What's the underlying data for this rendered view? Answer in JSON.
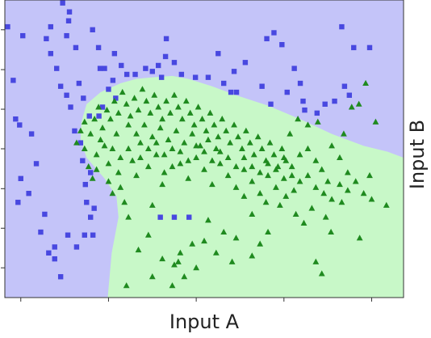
{
  "chart_data": {
    "type": "scatter",
    "title": "",
    "xlabel": "Input A",
    "ylabel": "Input B",
    "xlim": [
      0,
      1
    ],
    "ylim": [
      0,
      1
    ],
    "grid": false,
    "tick_labels": false,
    "colors": {
      "region_class_a": "#c4c4f9",
      "region_class_b": "#c8f8c8",
      "marker_class_a": "#4848e0",
      "marker_class_b": "#1f8a1f",
      "frame": "#333333"
    },
    "decision_boundary": [
      [
        0.258,
        0.0
      ],
      [
        0.268,
        0.15
      ],
      [
        0.285,
        0.27
      ],
      [
        0.28,
        0.34
      ],
      [
        0.25,
        0.4
      ],
      [
        0.205,
        0.47
      ],
      [
        0.19,
        0.53
      ],
      [
        0.192,
        0.59
      ],
      [
        0.205,
        0.65
      ],
      [
        0.24,
        0.69
      ],
      [
        0.29,
        0.72
      ],
      [
        0.33,
        0.735
      ],
      [
        0.37,
        0.74
      ],
      [
        0.42,
        0.745
      ],
      [
        0.46,
        0.735
      ],
      [
        0.52,
        0.71
      ],
      [
        0.58,
        0.68
      ],
      [
        0.66,
        0.645
      ],
      [
        0.74,
        0.6
      ],
      [
        0.82,
        0.55
      ],
      [
        0.9,
        0.51
      ],
      [
        0.96,
        0.49
      ],
      [
        1.0,
        0.47
      ]
    ],
    "series": [
      {
        "marker": "square",
        "points": [
          [
            0.007,
            0.91
          ],
          [
            0.045,
            0.88
          ],
          [
            0.021,
            0.73
          ],
          [
            0.027,
            0.6
          ],
          [
            0.037,
            0.58
          ],
          [
            0.04,
            0.4
          ],
          [
            0.033,
            0.32
          ],
          [
            0.067,
            0.55
          ],
          [
            0.079,
            0.45
          ],
          [
            0.06,
            0.35
          ],
          [
            0.1,
            0.28
          ],
          [
            0.09,
            0.22
          ],
          [
            0.11,
            0.15
          ],
          [
            0.125,
            0.13
          ],
          [
            0.14,
            0.07
          ],
          [
            0.125,
            0.17
          ],
          [
            0.158,
            0.21
          ],
          [
            0.18,
            0.17
          ],
          [
            0.2,
            0.21
          ],
          [
            0.221,
            0.21
          ],
          [
            0.215,
            0.27
          ],
          [
            0.224,
            0.3
          ],
          [
            0.205,
            0.32
          ],
          [
            0.202,
            0.38
          ],
          [
            0.215,
            0.42
          ],
          [
            0.195,
            0.46
          ],
          [
            0.19,
            0.52
          ],
          [
            0.175,
            0.56
          ],
          [
            0.165,
            0.64
          ],
          [
            0.155,
            0.68
          ],
          [
            0.14,
            0.71
          ],
          [
            0.13,
            0.77
          ],
          [
            0.115,
            0.82
          ],
          [
            0.104,
            0.87
          ],
          [
            0.115,
            0.91
          ],
          [
            0.145,
            0.99
          ],
          [
            0.16,
            0.93
          ],
          [
            0.162,
            0.96
          ],
          [
            0.155,
            0.88
          ],
          [
            0.178,
            0.84
          ],
          [
            0.186,
            0.72
          ],
          [
            0.197,
            0.67
          ],
          [
            0.212,
            0.61
          ],
          [
            0.235,
            0.84
          ],
          [
            0.22,
            0.9
          ],
          [
            0.239,
            0.77
          ],
          [
            0.25,
            0.77
          ],
          [
            0.271,
            0.73
          ],
          [
            0.275,
            0.82
          ],
          [
            0.245,
            0.64
          ],
          [
            0.236,
            0.61
          ],
          [
            0.26,
            0.7
          ],
          [
            0.278,
            0.67
          ],
          [
            0.292,
            0.78
          ],
          [
            0.306,
            0.75
          ],
          [
            0.327,
            0.75
          ],
          [
            0.353,
            0.77
          ],
          [
            0.37,
            0.76
          ],
          [
            0.393,
            0.74
          ],
          [
            0.385,
            0.78
          ],
          [
            0.403,
            0.81
          ],
          [
            0.405,
            0.87
          ],
          [
            0.425,
            0.79
          ],
          [
            0.443,
            0.75
          ],
          [
            0.478,
            0.74
          ],
          [
            0.51,
            0.74
          ],
          [
            0.535,
            0.82
          ],
          [
            0.549,
            0.72
          ],
          [
            0.567,
            0.69
          ],
          [
            0.575,
            0.76
          ],
          [
            0.581,
            0.69
          ],
          [
            0.603,
            0.79
          ],
          [
            0.645,
            0.71
          ],
          [
            0.657,
            0.87
          ],
          [
            0.667,
            0.65
          ],
          [
            0.675,
            0.89
          ],
          [
            0.695,
            0.85
          ],
          [
            0.708,
            0.69
          ],
          [
            0.726,
            0.77
          ],
          [
            0.741,
            0.72
          ],
          [
            0.748,
            0.66
          ],
          [
            0.752,
            0.63
          ],
          [
            0.783,
            0.62
          ],
          [
            0.803,
            0.65
          ],
          [
            0.827,
            0.66
          ],
          [
            0.845,
            0.91
          ],
          [
            0.852,
            0.71
          ],
          [
            0.864,
            0.68
          ],
          [
            0.915,
            0.84
          ],
          [
            0.875,
            0.84
          ],
          [
            0.39,
            0.27
          ],
          [
            0.425,
            0.27
          ],
          [
            0.462,
            0.27
          ]
        ]
      },
      {
        "marker": "triangle",
        "points": [
          [
            0.18,
            0.52
          ],
          [
            0.19,
            0.56
          ],
          [
            0.2,
            0.59
          ],
          [
            0.215,
            0.55
          ],
          [
            0.225,
            0.6
          ],
          [
            0.235,
            0.64
          ],
          [
            0.245,
            0.57
          ],
          [
            0.256,
            0.63
          ],
          [
            0.265,
            0.6
          ],
          [
            0.275,
            0.66
          ],
          [
            0.285,
            0.62
          ],
          [
            0.295,
            0.69
          ],
          [
            0.305,
            0.65
          ],
          [
            0.315,
            0.61
          ],
          [
            0.325,
            0.67
          ],
          [
            0.335,
            0.63
          ],
          [
            0.345,
            0.7
          ],
          [
            0.355,
            0.66
          ],
          [
            0.365,
            0.62
          ],
          [
            0.375,
            0.68
          ],
          [
            0.385,
            0.64
          ],
          [
            0.395,
            0.6
          ],
          [
            0.405,
            0.66
          ],
          [
            0.415,
            0.62
          ],
          [
            0.425,
            0.68
          ],
          [
            0.435,
            0.64
          ],
          [
            0.445,
            0.6
          ],
          [
            0.455,
            0.66
          ],
          [
            0.465,
            0.62
          ],
          [
            0.475,
            0.58
          ],
          [
            0.485,
            0.64
          ],
          [
            0.495,
            0.6
          ],
          [
            0.505,
            0.56
          ],
          [
            0.515,
            0.62
          ],
          [
            0.525,
            0.58
          ],
          [
            0.535,
            0.54
          ],
          [
            0.545,
            0.6
          ],
          [
            0.555,
            0.56
          ],
          [
            0.565,
            0.52
          ],
          [
            0.575,
            0.58
          ],
          [
            0.585,
            0.54
          ],
          [
            0.595,
            0.5
          ],
          [
            0.605,
            0.56
          ],
          [
            0.615,
            0.52
          ],
          [
            0.625,
            0.48
          ],
          [
            0.635,
            0.54
          ],
          [
            0.645,
            0.5
          ],
          [
            0.655,
            0.46
          ],
          [
            0.665,
            0.52
          ],
          [
            0.675,
            0.48
          ],
          [
            0.685,
            0.44
          ],
          [
            0.695,
            0.5
          ],
          [
            0.705,
            0.46
          ],
          [
            0.715,
            0.55
          ],
          [
            0.735,
            0.6
          ],
          [
            0.76,
            0.58
          ],
          [
            0.785,
            0.59
          ],
          [
            0.85,
            0.55
          ],
          [
            0.87,
            0.64
          ],
          [
            0.93,
            0.59
          ],
          [
            0.905,
            0.72
          ],
          [
            0.888,
            0.65
          ],
          [
            0.915,
            0.41
          ],
          [
            0.795,
            0.43
          ],
          [
            0.81,
            0.39
          ],
          [
            0.845,
            0.32
          ],
          [
            0.805,
            0.27
          ],
          [
            0.957,
            0.31
          ],
          [
            0.89,
            0.2
          ],
          [
            0.818,
            0.22
          ],
          [
            0.78,
            0.12
          ],
          [
            0.795,
            0.08
          ],
          [
            0.725,
            0.36
          ],
          [
            0.69,
            0.31
          ],
          [
            0.705,
            0.34
          ],
          [
            0.655,
            0.32
          ],
          [
            0.62,
            0.28
          ],
          [
            0.6,
            0.34
          ],
          [
            0.58,
            0.2
          ],
          [
            0.549,
            0.22
          ],
          [
            0.51,
            0.26
          ],
          [
            0.47,
            0.18
          ],
          [
            0.44,
            0.15
          ],
          [
            0.425,
            0.11
          ],
          [
            0.435,
            0.12
          ],
          [
            0.395,
            0.13
          ],
          [
            0.36,
            0.21
          ],
          [
            0.335,
            0.16
          ],
          [
            0.305,
            0.04
          ],
          [
            0.37,
            0.07
          ],
          [
            0.3,
            0.32
          ],
          [
            0.29,
            0.37
          ],
          [
            0.33,
            0.41
          ],
          [
            0.31,
            0.27
          ],
          [
            0.37,
            0.31
          ],
          [
            0.395,
            0.38
          ],
          [
            0.26,
            0.45
          ],
          [
            0.27,
            0.35
          ],
          [
            0.23,
            0.48
          ],
          [
            0.22,
            0.4
          ],
          [
            0.25,
            0.51
          ],
          [
            0.285,
            0.42
          ],
          [
            0.32,
            0.46
          ],
          [
            0.34,
            0.52
          ],
          [
            0.36,
            0.44
          ],
          [
            0.38,
            0.48
          ],
          [
            0.4,
            0.42
          ],
          [
            0.42,
            0.5
          ],
          [
            0.44,
            0.45
          ],
          [
            0.46,
            0.4
          ],
          [
            0.48,
            0.47
          ],
          [
            0.5,
            0.43
          ],
          [
            0.52,
            0.38
          ],
          [
            0.54,
            0.45
          ],
          [
            0.56,
            0.41
          ],
          [
            0.58,
            0.37
          ],
          [
            0.6,
            0.43
          ],
          [
            0.62,
            0.39
          ],
          [
            0.64,
            0.35
          ],
          [
            0.66,
            0.41
          ],
          [
            0.68,
            0.37
          ],
          [
            0.7,
            0.4
          ],
          [
            0.72,
            0.44
          ],
          [
            0.74,
            0.48
          ],
          [
            0.76,
            0.5
          ],
          [
            0.78,
            0.46
          ],
          [
            0.82,
            0.51
          ],
          [
            0.84,
            0.47
          ],
          [
            0.86,
            0.42
          ],
          [
            0.88,
            0.39
          ],
          [
            0.9,
            0.35
          ],
          [
            0.92,
            0.33
          ],
          [
            0.75,
            0.25
          ],
          [
            0.77,
            0.3
          ],
          [
            0.73,
            0.28
          ],
          [
            0.66,
            0.22
          ],
          [
            0.64,
            0.18
          ],
          [
            0.62,
            0.14
          ],
          [
            0.57,
            0.12
          ],
          [
            0.53,
            0.15
          ],
          [
            0.5,
            0.19
          ],
          [
            0.48,
            0.1
          ],
          [
            0.45,
            0.07
          ],
          [
            0.42,
            0.04
          ],
          [
            0.31,
            0.58
          ],
          [
            0.33,
            0.55
          ],
          [
            0.35,
            0.58
          ],
          [
            0.37,
            0.54
          ],
          [
            0.39,
            0.57
          ],
          [
            0.41,
            0.53
          ],
          [
            0.43,
            0.56
          ],
          [
            0.45,
            0.52
          ],
          [
            0.47,
            0.55
          ],
          [
            0.49,
            0.51
          ],
          [
            0.51,
            0.53
          ],
          [
            0.53,
            0.5
          ],
          [
            0.28,
            0.55
          ],
          [
            0.27,
            0.5
          ],
          [
            0.24,
            0.53
          ],
          [
            0.2,
            0.5
          ],
          [
            0.21,
            0.44
          ],
          [
            0.23,
            0.43
          ],
          [
            0.26,
            0.39
          ],
          [
            0.29,
            0.47
          ],
          [
            0.31,
            0.5
          ],
          [
            0.34,
            0.47
          ],
          [
            0.36,
            0.5
          ],
          [
            0.38,
            0.52
          ],
          [
            0.4,
            0.48
          ],
          [
            0.42,
            0.44
          ],
          [
            0.44,
            0.49
          ],
          [
            0.46,
            0.46
          ],
          [
            0.48,
            0.51
          ],
          [
            0.5,
            0.49
          ],
          [
            0.52,
            0.46
          ],
          [
            0.54,
            0.49
          ],
          [
            0.56,
            0.47
          ],
          [
            0.58,
            0.44
          ],
          [
            0.6,
            0.47
          ],
          [
            0.62,
            0.44
          ],
          [
            0.64,
            0.42
          ],
          [
            0.66,
            0.45
          ],
          [
            0.68,
            0.43
          ],
          [
            0.7,
            0.47
          ],
          [
            0.72,
            0.41
          ],
          [
            0.74,
            0.39
          ],
          [
            0.76,
            0.41
          ],
          [
            0.78,
            0.37
          ],
          [
            0.8,
            0.35
          ],
          [
            0.82,
            0.33
          ],
          [
            0.84,
            0.38
          ],
          [
            0.86,
            0.36
          ]
        ]
      }
    ]
  }
}
